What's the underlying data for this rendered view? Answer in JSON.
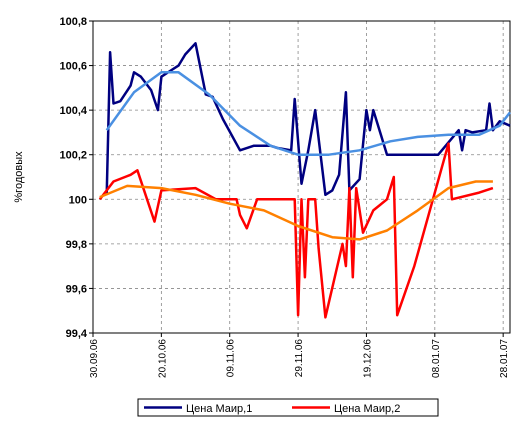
{
  "chart_data": {
    "type": "line",
    "ylabel": "%годовых",
    "xlim": [
      "2006-09-30",
      "2007-01-30"
    ],
    "xticks": [
      {
        "value": "2006-09-30",
        "label": "30.09.06"
      },
      {
        "value": "2006-10-20",
        "label": "20.10.06"
      },
      {
        "value": "2006-11-09",
        "label": "09.11.06"
      },
      {
        "value": "2006-11-29",
        "label": "29.11.06"
      },
      {
        "value": "2006-12-19",
        "label": "19.12.06"
      },
      {
        "value": "2007-01-08",
        "label": "08.01.07"
      },
      {
        "value": "2007-01-28",
        "label": "28.01.07"
      }
    ],
    "ylim": [
      99.4,
      100.8
    ],
    "yticks": [
      {
        "value": 99.4,
        "label": "99,4"
      },
      {
        "value": 99.6,
        "label": "99,6"
      },
      {
        "value": 99.8,
        "label": "99,8"
      },
      100,
      {
        "value": 100.2,
        "label": "100,2"
      },
      {
        "value": 100.4,
        "label": "100,4"
      },
      {
        "value": 100.6,
        "label": "100,6"
      },
      {
        "value": 100.8,
        "label": "100,8"
      }
    ],
    "grid": true,
    "legend": "bottom",
    "series": [
      {
        "name": "Цена Маир,1",
        "color": "#000080",
        "x": [
          "2006-10-04",
          "2006-10-05",
          "2006-10-06",
          "2006-10-08",
          "2006-10-11",
          "2006-10-12",
          "2006-10-14",
          "2006-10-17",
          "2006-10-19",
          "2006-10-20",
          "2006-10-23",
          "2006-10-25",
          "2006-10-27",
          "2006-10-30",
          "2006-11-02",
          "2006-11-04",
          "2006-11-07",
          "2006-11-12",
          "2006-11-16",
          "2006-11-21",
          "2006-11-23",
          "2006-11-27",
          "2006-11-28",
          "2006-11-30",
          "2006-12-02",
          "2006-12-04",
          "2006-12-07",
          "2006-12-09",
          "2006-12-11",
          "2006-12-13",
          "2006-12-14",
          "2006-12-17",
          "2006-12-19",
          "2006-12-20",
          "2006-12-21",
          "2006-12-25",
          "2006-12-29",
          "2007-01-09",
          "2007-01-15",
          "2007-01-16",
          "2007-01-17",
          "2007-01-19",
          "2007-01-23",
          "2007-01-24",
          "2007-01-25",
          "2007-01-27",
          "2007-01-30"
        ],
        "values": [
          100.02,
          100.66,
          100.43,
          100.44,
          100.51,
          100.57,
          100.55,
          100.49,
          100.4,
          100.55,
          100.58,
          100.6,
          100.65,
          100.7,
          100.47,
          100.46,
          100.36,
          100.22,
          100.24,
          100.24,
          100.23,
          100.22,
          100.45,
          100.07,
          100.22,
          100.4,
          100.02,
          100.04,
          100.11,
          100.48,
          100.04,
          100.09,
          100.4,
          100.31,
          100.4,
          100.2,
          100.2,
          100.2,
          100.31,
          100.22,
          100.31,
          100.3,
          100.31,
          100.43,
          100.31,
          100.35,
          100.33
        ]
      },
      {
        "color": "#4a90e2",
        "x": [
          "2006-10-04",
          "2006-10-12",
          "2006-10-20",
          "2006-10-25",
          "2006-11-03",
          "2006-11-12",
          "2006-11-21",
          "2006-11-29",
          "2006-12-08",
          "2006-12-17",
          "2006-12-26",
          "2007-01-03",
          "2007-01-12",
          "2007-01-21",
          "2007-01-27",
          "2007-01-30"
        ],
        "values": [
          100.31,
          100.48,
          100.57,
          100.57,
          100.47,
          100.33,
          100.24,
          100.2,
          100.2,
          100.22,
          100.26,
          100.28,
          100.29,
          100.29,
          100.33,
          100.39
        ]
      },
      {
        "name": "Цена Маир,2",
        "color": "#ff0000",
        "x": [
          "2006-10-02",
          "2006-10-04",
          "2006-10-06",
          "2006-10-11",
          "2006-10-13",
          "2006-10-18",
          "2006-10-20",
          "2006-10-30",
          "2006-11-05",
          "2006-11-11",
          "2006-11-12",
          "2006-11-14",
          "2006-11-17",
          "2006-11-28",
          "2006-11-29",
          "2006-11-30",
          "2006-12-01",
          "2006-12-02",
          "2006-12-04",
          "2006-12-05",
          "2006-12-07",
          "2006-12-12",
          "2006-12-13",
          "2006-12-14",
          "2006-12-15",
          "2006-12-16",
          "2006-12-18",
          "2006-12-21",
          "2006-12-25",
          "2006-12-27",
          "2006-12-28",
          "2007-01-02",
          "2007-01-12",
          "2007-01-13",
          "2007-01-21",
          "2007-01-25"
        ],
        "values": [
          100.0,
          100.04,
          100.08,
          100.11,
          100.13,
          99.9,
          100.04,
          100.05,
          100.0,
          100.0,
          99.93,
          99.87,
          100.0,
          100.0,
          99.48,
          100.0,
          99.65,
          100.0,
          100.0,
          99.78,
          99.47,
          99.8,
          99.7,
          100.05,
          99.65,
          100.05,
          99.85,
          99.95,
          100.0,
          100.1,
          99.48,
          99.7,
          100.25,
          100.0,
          100.03,
          100.05
        ]
      },
      {
        "color": "#ff8000",
        "x": [
          "2006-10-02",
          "2006-10-10",
          "2006-10-20",
          "2006-10-30",
          "2006-11-09",
          "2006-11-19",
          "2006-11-29",
          "2006-12-09",
          "2006-12-17",
          "2006-12-25",
          "2007-01-03",
          "2007-01-12",
          "2007-01-20",
          "2007-01-25"
        ],
        "values": [
          100.01,
          100.06,
          100.05,
          100.02,
          99.98,
          99.95,
          99.88,
          99.83,
          99.82,
          99.86,
          99.95,
          100.05,
          100.08,
          100.08
        ]
      }
    ]
  }
}
